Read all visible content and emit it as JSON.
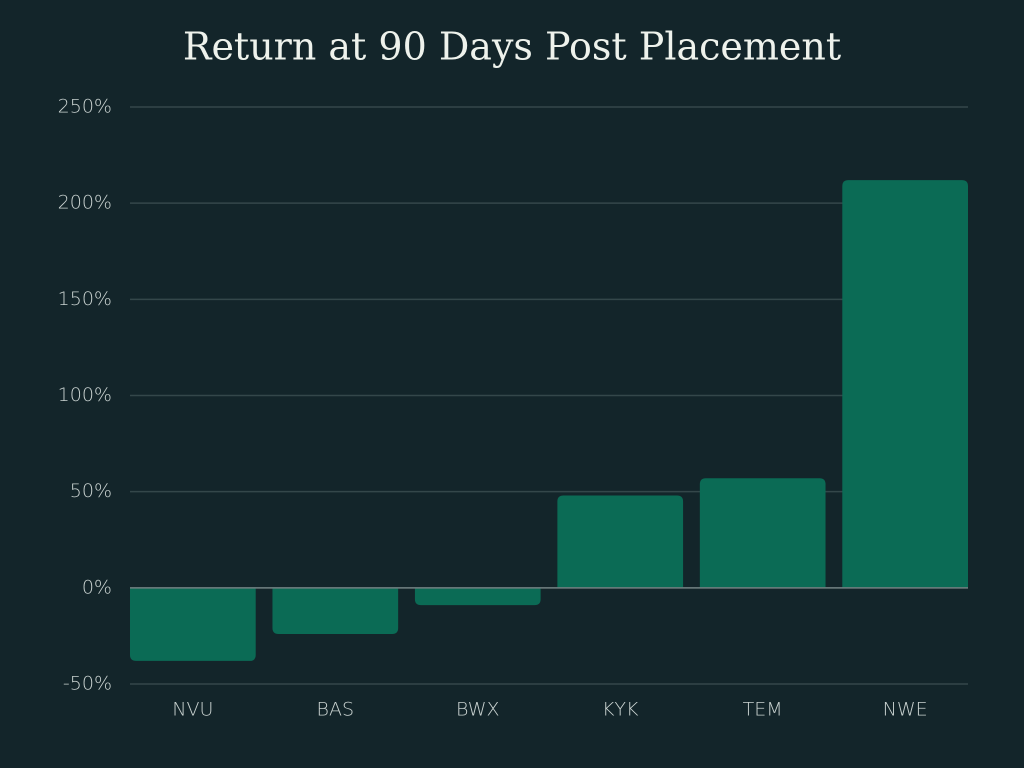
{
  "chart_data": {
    "type": "bar",
    "title": "Return at 90 Days Post Placement",
    "categories": [
      "NVU",
      "BAS",
      "BWX",
      "KYK",
      "TEM",
      "NWE"
    ],
    "values": [
      -38,
      -24,
      -9,
      48,
      57,
      212
    ],
    "color": "#0b6b55",
    "ylim": [
      -50,
      250
    ],
    "yticks": [
      {
        "value": -50,
        "label": "-50%"
      },
      {
        "value": 0,
        "label": "0%"
      },
      {
        "value": 50,
        "label": "50%"
      },
      {
        "value": 100,
        "label": "100%"
      },
      {
        "value": 150,
        "label": "150%"
      },
      {
        "value": 200,
        "label": "200%"
      },
      {
        "value": 250,
        "label": "250%"
      }
    ],
    "grid": true
  }
}
